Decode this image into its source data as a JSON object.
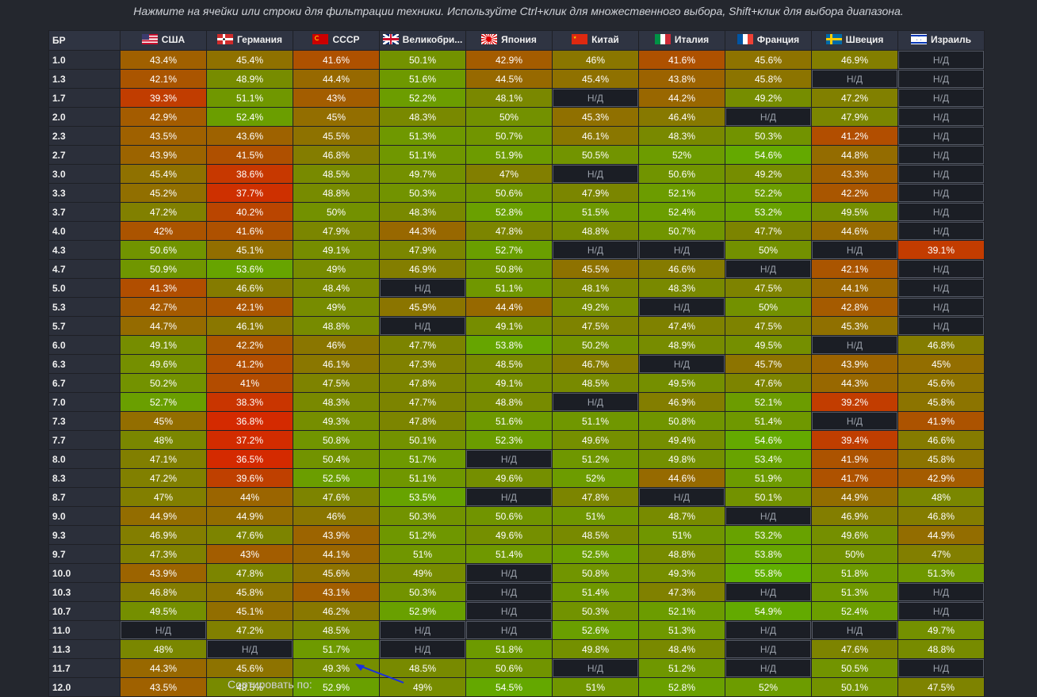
{
  "instructions": "Нажмите на ячейки или строки для фильтрации техники. Используйте Ctrl+клик для множественного выбора, Shift+клик для выбора диапазона.",
  "sort_label": "Сортировать по:",
  "na_text": "Н/Д",
  "header": {
    "br": "БР",
    "nations": [
      {
        "label": "США",
        "flag": "usa-flag-icon"
      },
      {
        "label": "Германия",
        "flag": "germany-flag-icon"
      },
      {
        "label": "СССР",
        "flag": "ussr-flag-icon"
      },
      {
        "label": "Великобри...",
        "flag": "uk-flag-icon"
      },
      {
        "label": "Япония",
        "flag": "japan-flag-icon"
      },
      {
        "label": "Китай",
        "flag": "china-flag-icon"
      },
      {
        "label": "Италия",
        "flag": "italy-flag-icon"
      },
      {
        "label": "Франция",
        "flag": "france-flag-icon"
      },
      {
        "label": "Швеция",
        "flag": "sweden-flag-icon"
      },
      {
        "label": "Израиль",
        "flag": "israel-flag-icon"
      }
    ]
  },
  "colors": {
    "low": "#d42a00",
    "mid": "#7a8700",
    "high": "#5fb000",
    "na_bg": "#1b1e25",
    "header_bg": "#2f3442"
  },
  "rows": [
    {
      "br": "1.0",
      "values": [
        "43.4%",
        "45.4%",
        "41.6%",
        "50.1%",
        "42.9%",
        "46%",
        "41.6%",
        "45.6%",
        "46.9%",
        null
      ]
    },
    {
      "br": "1.3",
      "values": [
        "42.1%",
        "48.9%",
        "44.4%",
        "51.6%",
        "44.5%",
        "45.4%",
        "43.8%",
        "45.8%",
        null,
        null
      ]
    },
    {
      "br": "1.7",
      "values": [
        "39.3%",
        "51.1%",
        "43%",
        "52.2%",
        "48.1%",
        null,
        "44.2%",
        "49.2%",
        "47.2%",
        null
      ]
    },
    {
      "br": "2.0",
      "values": [
        "42.9%",
        "52.4%",
        "45%",
        "48.3%",
        "50%",
        "45.3%",
        "46.4%",
        null,
        "47.9%",
        null
      ]
    },
    {
      "br": "2.3",
      "values": [
        "43.5%",
        "43.6%",
        "45.5%",
        "51.3%",
        "50.7%",
        "46.1%",
        "48.3%",
        "50.3%",
        "41.2%",
        null
      ]
    },
    {
      "br": "2.7",
      "values": [
        "43.9%",
        "41.5%",
        "46.8%",
        "51.1%",
        "51.9%",
        "50.5%",
        "52%",
        "54.6%",
        "44.8%",
        null
      ]
    },
    {
      "br": "3.0",
      "values": [
        "45.4%",
        "38.6%",
        "48.5%",
        "49.7%",
        "47%",
        null,
        "50.6%",
        "49.2%",
        "43.3%",
        null
      ]
    },
    {
      "br": "3.3",
      "values": [
        "45.2%",
        "37.7%",
        "48.8%",
        "50.3%",
        "50.6%",
        "47.9%",
        "52.1%",
        "52.2%",
        "42.2%",
        null
      ]
    },
    {
      "br": "3.7",
      "values": [
        "47.2%",
        "40.2%",
        "50%",
        "48.3%",
        "52.8%",
        "51.5%",
        "52.4%",
        "53.2%",
        "49.5%",
        null
      ]
    },
    {
      "br": "4.0",
      "values": [
        "42%",
        "41.6%",
        "47.9%",
        "44.3%",
        "47.8%",
        "48.8%",
        "50.7%",
        "47.7%",
        "44.6%",
        null
      ]
    },
    {
      "br": "4.3",
      "values": [
        "50.6%",
        "45.1%",
        "49.1%",
        "47.9%",
        "52.7%",
        null,
        null,
        "50%",
        null,
        "39.1%"
      ]
    },
    {
      "br": "4.7",
      "values": [
        "50.9%",
        "53.6%",
        "49%",
        "46.9%",
        "50.8%",
        "45.5%",
        "46.6%",
        null,
        "42.1%",
        null
      ]
    },
    {
      "br": "5.0",
      "values": [
        "41.3%",
        "46.6%",
        "48.4%",
        null,
        "51.1%",
        "48.1%",
        "48.3%",
        "47.5%",
        "44.1%",
        null
      ]
    },
    {
      "br": "5.3",
      "values": [
        "42.7%",
        "42.1%",
        "49%",
        "45.9%",
        "44.4%",
        "49.2%",
        null,
        "50%",
        "42.8%",
        null
      ]
    },
    {
      "br": "5.7",
      "values": [
        "44.7%",
        "46.1%",
        "48.8%",
        null,
        "49.1%",
        "47.5%",
        "47.4%",
        "47.5%",
        "45.3%",
        null
      ]
    },
    {
      "br": "6.0",
      "values": [
        "49.1%",
        "42.2%",
        "46%",
        "47.7%",
        "53.8%",
        "50.2%",
        "48.9%",
        "49.5%",
        null,
        "46.8%"
      ]
    },
    {
      "br": "6.3",
      "values": [
        "49.6%",
        "41.2%",
        "46.1%",
        "47.3%",
        "48.5%",
        "46.7%",
        null,
        "45.7%",
        "43.9%",
        "45%"
      ]
    },
    {
      "br": "6.7",
      "values": [
        "50.2%",
        "41%",
        "47.5%",
        "47.8%",
        "49.1%",
        "48.5%",
        "49.5%",
        "47.6%",
        "44.3%",
        "45.6%"
      ]
    },
    {
      "br": "7.0",
      "values": [
        "52.7%",
        "38.3%",
        "48.3%",
        "47.7%",
        "48.8%",
        null,
        "46.9%",
        "52.1%",
        "39.2%",
        "45.8%"
      ]
    },
    {
      "br": "7.3",
      "values": [
        "45%",
        "36.8%",
        "49.3%",
        "47.8%",
        "51.6%",
        "51.1%",
        "50.8%",
        "51.4%",
        null,
        "41.9%"
      ]
    },
    {
      "br": "7.7",
      "values": [
        "48%",
        "37.2%",
        "50.8%",
        "50.1%",
        "52.3%",
        "49.6%",
        "49.4%",
        "54.6%",
        "39.4%",
        "46.6%"
      ]
    },
    {
      "br": "8.0",
      "values": [
        "47.1%",
        "36.5%",
        "50.4%",
        "51.7%",
        null,
        "51.2%",
        "49.8%",
        "53.4%",
        "41.9%",
        "45.8%"
      ]
    },
    {
      "br": "8.3",
      "values": [
        "47.2%",
        "39.6%",
        "52.5%",
        "51.1%",
        "49.6%",
        "52%",
        "44.6%",
        "51.9%",
        "41.7%",
        "42.9%"
      ]
    },
    {
      "br": "8.7",
      "values": [
        "47%",
        "44%",
        "47.6%",
        "53.5%",
        null,
        "47.8%",
        null,
        "50.1%",
        "44.9%",
        "48%"
      ]
    },
    {
      "br": "9.0",
      "values": [
        "44.9%",
        "44.9%",
        "46%",
        "50.3%",
        "50.6%",
        "51%",
        "48.7%",
        null,
        "46.9%",
        "46.8%"
      ]
    },
    {
      "br": "9.3",
      "values": [
        "46.9%",
        "47.6%",
        "43.9%",
        "51.2%",
        "49.6%",
        "48.5%",
        "51%",
        "53.2%",
        "49.6%",
        "44.9%"
      ]
    },
    {
      "br": "9.7",
      "values": [
        "47.3%",
        "43%",
        "44.1%",
        "51%",
        "51.4%",
        "52.5%",
        "48.8%",
        "53.8%",
        "50%",
        "47%"
      ]
    },
    {
      "br": "10.0",
      "values": [
        "43.9%",
        "47.8%",
        "45.6%",
        "49%",
        null,
        "50.8%",
        "49.3%",
        "55.8%",
        "51.8%",
        "51.3%"
      ]
    },
    {
      "br": "10.3",
      "values": [
        "46.8%",
        "45.8%",
        "43.1%",
        "50.3%",
        null,
        "51.4%",
        "47.3%",
        null,
        "51.3%",
        null
      ]
    },
    {
      "br": "10.7",
      "values": [
        "49.5%",
        "45.1%",
        "46.2%",
        "52.9%",
        null,
        "50.3%",
        "52.1%",
        "54.9%",
        "52.4%",
        null
      ]
    },
    {
      "br": "11.0",
      "values": [
        null,
        "47.2%",
        "48.5%",
        null,
        null,
        "52.6%",
        "51.3%",
        null,
        null,
        "49.7%"
      ]
    },
    {
      "br": "11.3",
      "values": [
        "48%",
        null,
        "51.7%",
        null,
        "51.8%",
        "49.8%",
        "48.4%",
        null,
        "47.6%",
        "48.8%"
      ]
    },
    {
      "br": "11.7",
      "values": [
        "44.3%",
        "45.6%",
        "49.3%",
        "48.5%",
        "50.6%",
        null,
        "51.2%",
        null,
        "50.5%",
        null
      ]
    },
    {
      "br": "12.0",
      "values": [
        "43.5%",
        "48.5%",
        "52.9%",
        "49%",
        "54.5%",
        "51%",
        "52.8%",
        "52%",
        "50.1%",
        "47.5%"
      ]
    }
  ]
}
